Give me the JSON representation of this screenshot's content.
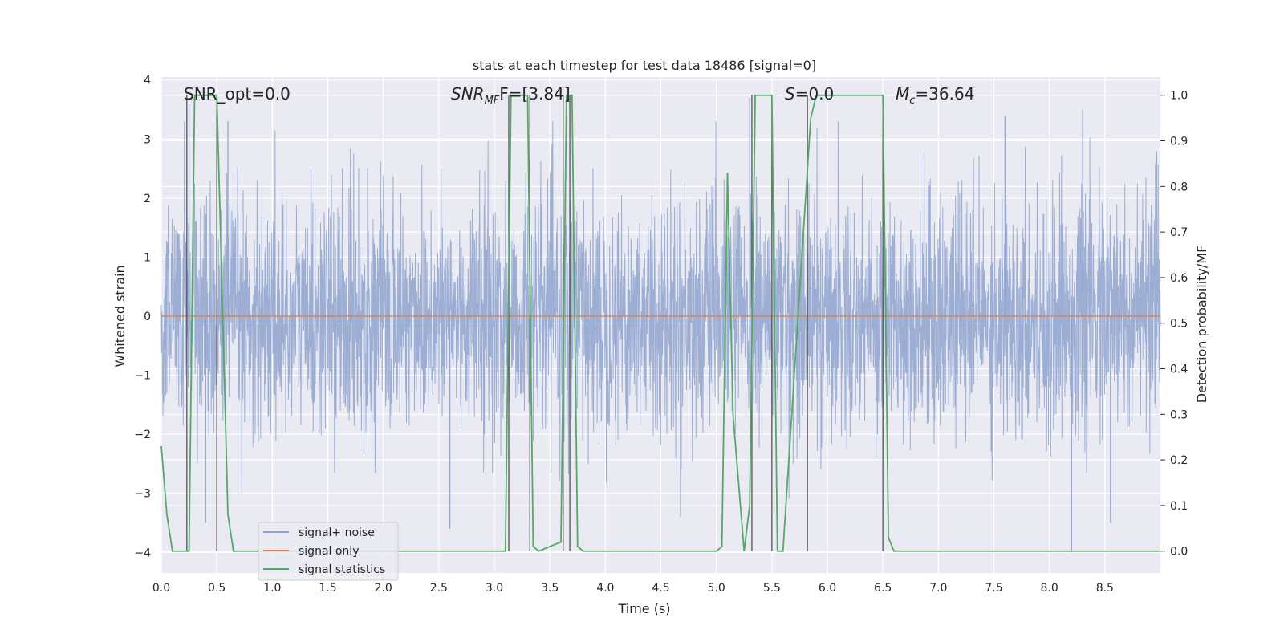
{
  "chart_data": {
    "type": "line",
    "title": "stats at each timestep for test data 18486 [signal=0]",
    "xlabel": "Time (s)",
    "ylabel_left": "Whitened strain",
    "ylabel_right": "Detection probability/MF",
    "xlim": [
      0,
      9.0
    ],
    "ylim_left": [
      -4.35,
      4.05
    ],
    "ylim_right": [
      -0.048,
      1.04
    ],
    "x_ticks": [
      0.0,
      0.5,
      1.0,
      1.5,
      2.0,
      2.5,
      3.0,
      3.5,
      4.0,
      4.5,
      5.0,
      5.5,
      6.0,
      6.5,
      7.0,
      7.5,
      8.0,
      8.5
    ],
    "x_tick_labels": [
      "0.0",
      "0.5",
      "1.0",
      "1.5",
      "2.0",
      "2.5",
      "3.0",
      "3.5",
      "4.0",
      "4.5",
      "5.0",
      "5.5",
      "6.0",
      "6.5",
      "7.0",
      "7.5",
      "8.0",
      "8.5"
    ],
    "y_left_ticks": [
      -4,
      -3,
      -2,
      -1,
      0,
      1,
      2,
      3,
      4
    ],
    "y_left_tick_labels": [
      "−4",
      "−3",
      "−2",
      "−1",
      "0",
      "1",
      "2",
      "3",
      "4"
    ],
    "y_right_ticks": [
      0.0,
      0.1,
      0.2,
      0.3,
      0.4,
      0.5,
      0.6,
      0.7,
      0.8,
      0.9,
      1.0
    ],
    "y_right_tick_labels": [
      "0.0",
      "0.1",
      "0.2",
      "0.3",
      "0.4",
      "0.5",
      "0.6",
      "0.7",
      "0.8",
      "0.9",
      "1.0"
    ],
    "grid": true,
    "legend_position": "lower-left",
    "annotations": {
      "snr_opt": "SNR_opt=0.0",
      "snr_mf_main": "SNR",
      "snr_mf_sub": "MF",
      "snr_mf_tail": "F=[3.84]",
      "s_main": "S",
      "s_tail": "=0.0",
      "mc_main": "M",
      "mc_sub": "c",
      "mc_tail": "=36.64"
    },
    "series": [
      {
        "name": "signal+ noise",
        "color": "#8fa3cf",
        "axis": "left",
        "kind": "noise",
        "description_std": 1.0,
        "x_range": [
          0,
          9.0
        ],
        "peaks": [
          {
            "x": 0.25,
            "y": 3.6
          },
          {
            "x": 0.6,
            "y": 3.3
          },
          {
            "x": 0.4,
            "y": -3.5
          },
          {
            "x": 2.6,
            "y": -3.6
          },
          {
            "x": 5.3,
            "y": 3.7
          },
          {
            "x": 8.2,
            "y": -4.0
          },
          {
            "x": 8.55,
            "y": -3.5
          },
          {
            "x": 8.3,
            "y": 3.5
          },
          {
            "x": 7.6,
            "y": 3.4
          }
        ]
      },
      {
        "name": "signal only",
        "color": "#dd8452",
        "axis": "left",
        "x": [
          0,
          9.0
        ],
        "y": [
          0,
          0
        ]
      },
      {
        "name": "signal statistics",
        "color": "#55a868",
        "axis": "right",
        "x": [
          0.0,
          0.05,
          0.1,
          0.2,
          0.25,
          0.3,
          0.4,
          0.5,
          0.55,
          0.6,
          0.65,
          3.0,
          3.1,
          3.15,
          3.3,
          3.35,
          3.4,
          3.6,
          3.65,
          3.7,
          3.75,
          3.8,
          5.0,
          5.05,
          5.1,
          5.15,
          5.25,
          5.3,
          5.35,
          5.4,
          5.45,
          5.5,
          5.55,
          5.6,
          5.85,
          5.9,
          6.5,
          6.55,
          6.6,
          9.0
        ],
        "y": [
          0.23,
          0.08,
          0.0,
          0.0,
          0.0,
          1.0,
          1.0,
          1.0,
          0.55,
          0.08,
          0.0,
          0.0,
          0.0,
          1.0,
          1.0,
          0.01,
          0.0,
          0.02,
          1.0,
          1.0,
          0.01,
          0.0,
          0.0,
          0.01,
          0.83,
          0.3,
          0.0,
          0.1,
          1.0,
          1.0,
          1.0,
          1.0,
          0.0,
          0.0,
          0.95,
          1.0,
          1.0,
          0.03,
          0.0,
          0.0
        ]
      }
    ],
    "vertical_lines": [
      0.23,
      0.5,
      3.13,
      3.32,
      3.62,
      3.68,
      5.32,
      5.5,
      5.82,
      6.5
    ]
  }
}
